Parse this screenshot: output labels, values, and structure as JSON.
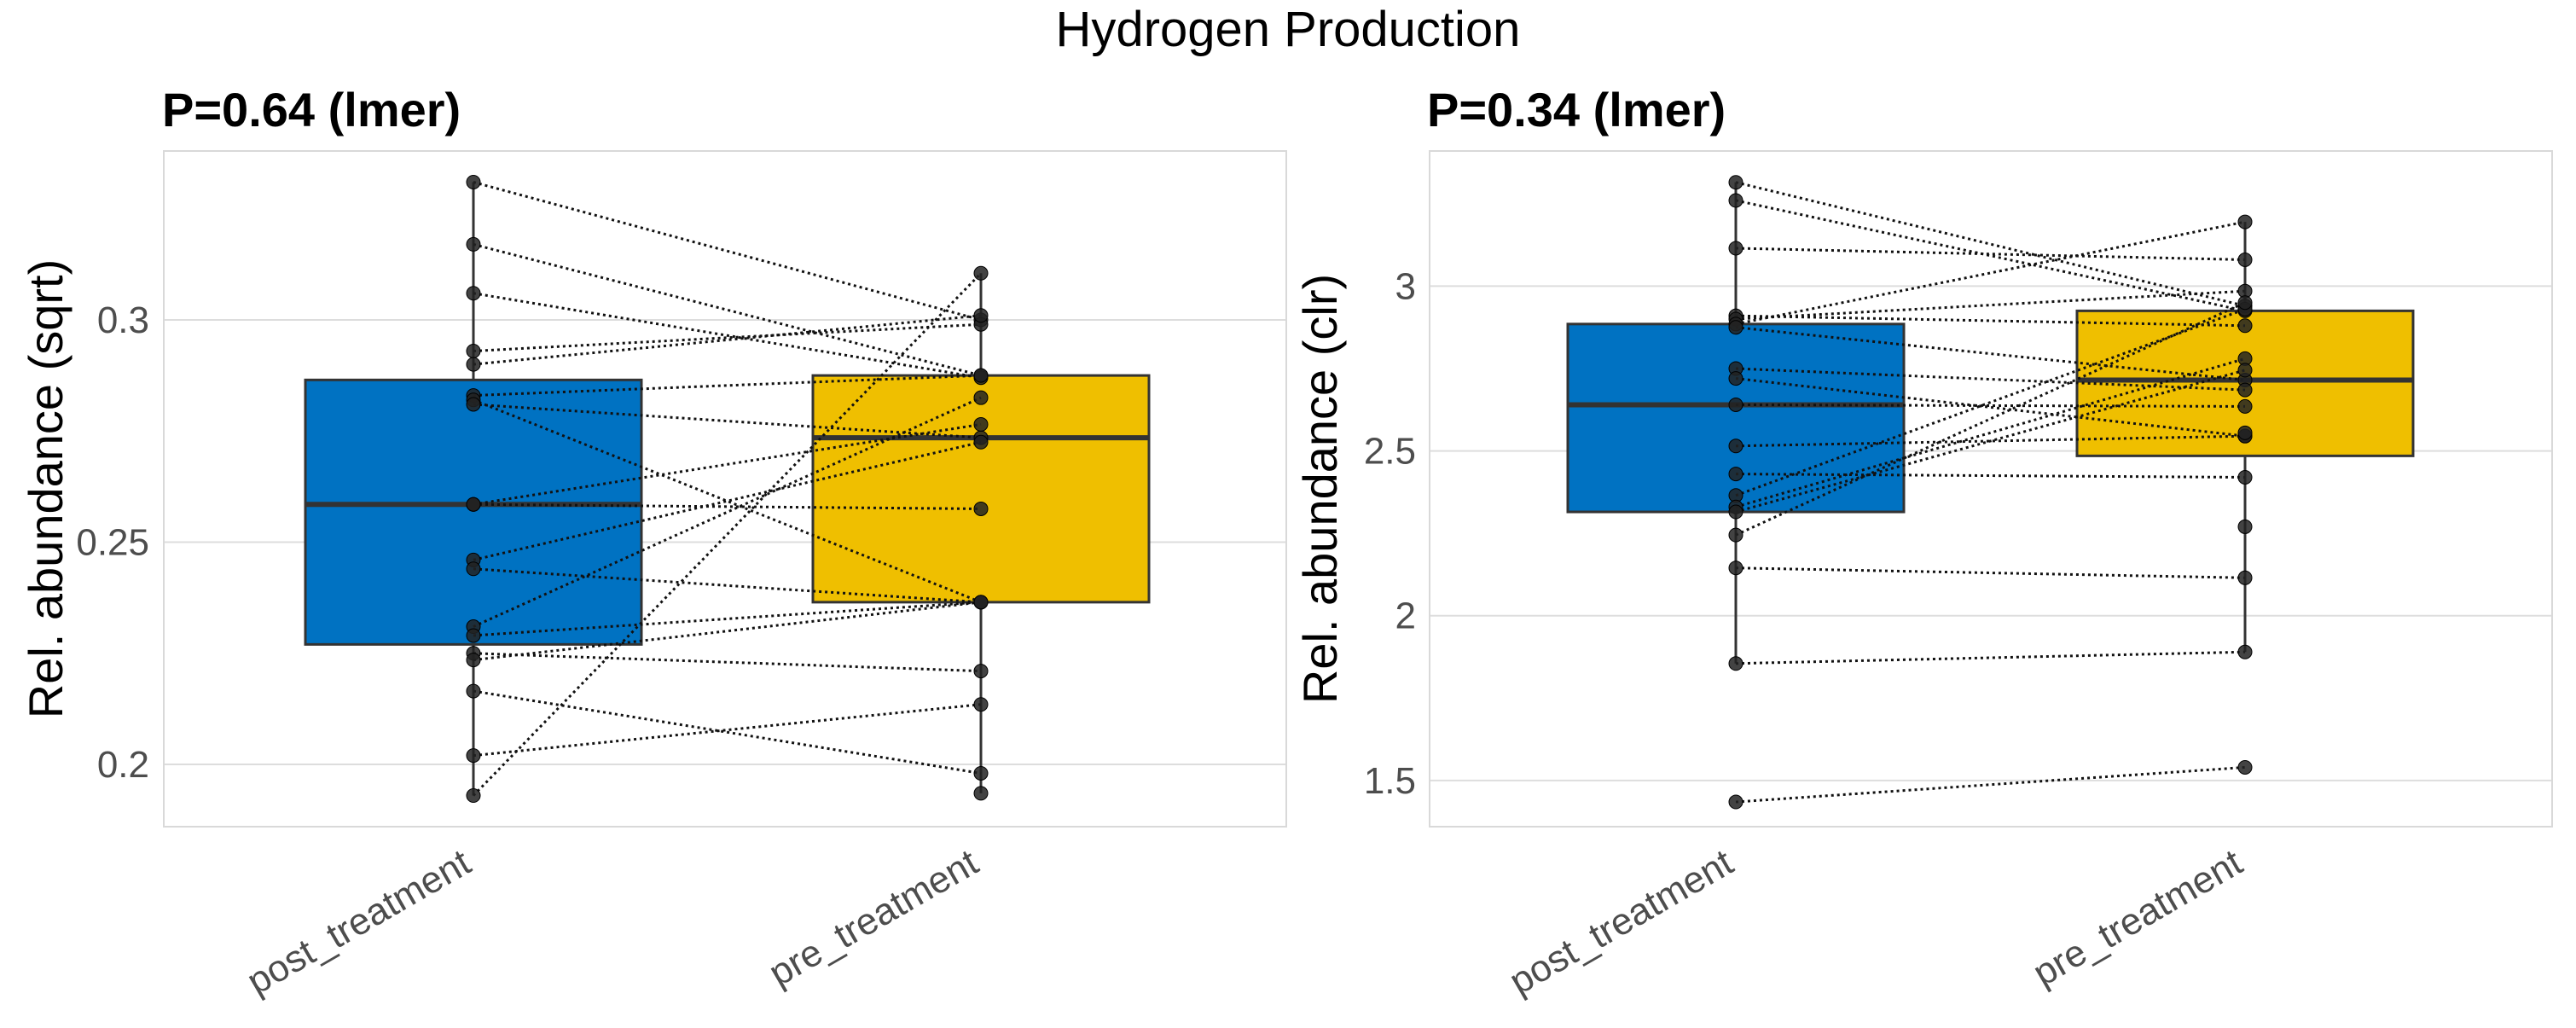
{
  "figure_title": "Hydrogen Production",
  "colors": {
    "post": "#0072C2",
    "pre": "#EFBF00",
    "points": "#222222",
    "grid": "#DDDDDD",
    "panel_border": "#D9D9D9",
    "text": "#4D4D4D"
  },
  "chart_data": [
    {
      "type": "boxplot",
      "title": "P=0.64 (lmer)",
      "ylabel": "Rel. abundance (sqrt)",
      "categories": [
        "post_treatment",
        "pre_treatment"
      ],
      "ylim": [
        0.186,
        0.338
      ],
      "yticks": [
        0.2,
        0.25,
        0.3
      ],
      "ytick_labels": [
        "0.2",
        "0.25",
        "0.3"
      ],
      "boxes": [
        {
          "category": "post_treatment",
          "color": "#0072C2",
          "q1": 0.227,
          "median": 0.2585,
          "q3": 0.2865,
          "whisker_low": 0.193,
          "whisker_high": 0.331
        },
        {
          "category": "pre_treatment",
          "color": "#EFBF00",
          "q1": 0.2365,
          "median": 0.2735,
          "q3": 0.2875,
          "whisker_low": 0.1935,
          "whisker_high": 0.3105
        }
      ],
      "pairs": [
        [
          0.331,
          0.3
        ],
        [
          0.317,
          0.2875
        ],
        [
          0.306,
          0.287
        ],
        [
          0.293,
          0.299
        ],
        [
          0.29,
          0.301
        ],
        [
          0.283,
          0.2875
        ],
        [
          0.282,
          0.2365
        ],
        [
          0.281,
          0.2735
        ],
        [
          0.2585,
          0.2765
        ],
        [
          0.2585,
          0.2575
        ],
        [
          0.246,
          0.2725
        ],
        [
          0.244,
          0.2365
        ],
        [
          0.231,
          0.2825
        ],
        [
          0.229,
          0.2365
        ],
        [
          0.225,
          0.221
        ],
        [
          0.2235,
          0.2365
        ],
        [
          0.2165,
          0.198
        ],
        [
          0.202,
          0.2135
        ],
        [
          0.193,
          0.3105
        ]
      ],
      "extra_points": [
        {
          "category": "post_treatment",
          "value": 0.2585
        },
        {
          "category": "pre_treatment",
          "value": 0.1935
        }
      ]
    },
    {
      "type": "boxplot",
      "title": "P=0.34 (lmer)",
      "ylabel": "Rel. abundance (clr)",
      "categories": [
        "post_treatment",
        "pre_treatment"
      ],
      "ylim": [
        1.36,
        3.41
      ],
      "yticks": [
        1.5,
        2,
        2.5,
        3
      ],
      "ytick_labels": [
        "1.5",
        "2",
        "2.5",
        "3"
      ],
      "boxes": [
        {
          "category": "post_treatment",
          "color": "#0072C2",
          "q1": 2.315,
          "median": 2.64,
          "q3": 2.885,
          "whisker_low": 1.855,
          "whisker_high": 3.315
        },
        {
          "category": "pre_treatment",
          "color": "#EFBF00",
          "q1": 2.485,
          "median": 2.715,
          "q3": 2.925,
          "whisker_low": 1.89,
          "whisker_high": 3.195
        }
      ],
      "pairs": [
        [
          3.315,
          2.94
        ],
        [
          3.26,
          2.925
        ],
        [
          3.115,
          3.08
        ],
        [
          2.91,
          2.88
        ],
        [
          2.9,
          2.985
        ],
        [
          2.885,
          3.195
        ],
        [
          2.875,
          2.715
        ],
        [
          2.75,
          2.685
        ],
        [
          2.72,
          2.545
        ],
        [
          2.64,
          2.635
        ],
        [
          2.515,
          2.545
        ],
        [
          2.43,
          2.42
        ],
        [
          2.365,
          2.93
        ],
        [
          2.33,
          2.78
        ],
        [
          2.315,
          2.745
        ],
        [
          2.245,
          2.95
        ],
        [
          2.145,
          2.115
        ],
        [
          1.855,
          1.89
        ],
        [
          1.435,
          1.54
        ]
      ],
      "extra_points": [
        {
          "category": "pre_treatment",
          "value": 2.27
        },
        {
          "category": "pre_treatment",
          "value": 2.555
        }
      ]
    }
  ]
}
